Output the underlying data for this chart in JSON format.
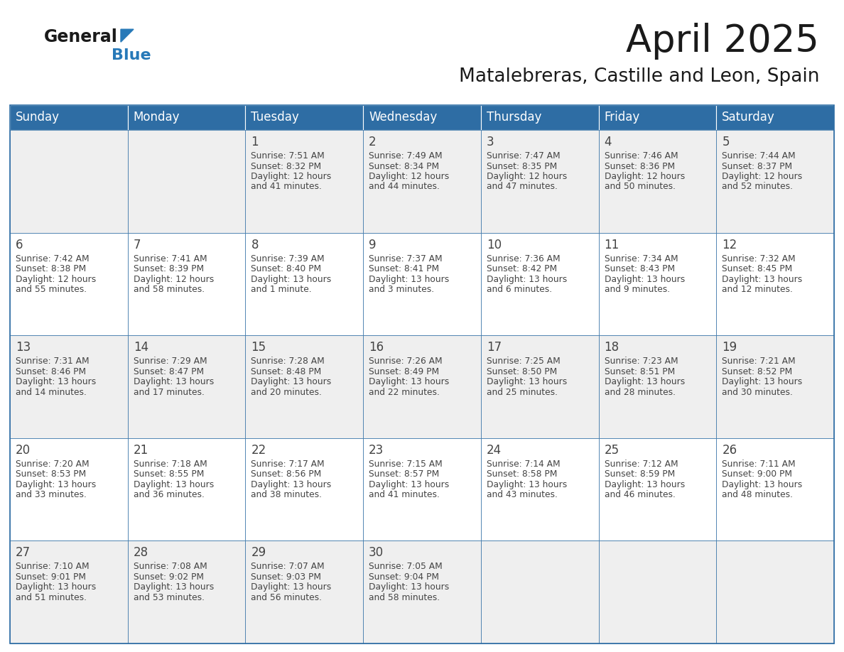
{
  "title": "April 2025",
  "subtitle": "Matalebreras, Castille and Leon, Spain",
  "days_of_week": [
    "Sunday",
    "Monday",
    "Tuesday",
    "Wednesday",
    "Thursday",
    "Friday",
    "Saturday"
  ],
  "header_bg": "#2E6DA4",
  "header_text": "#FFFFFF",
  "cell_bg_odd": "#EFEFEF",
  "cell_bg_even": "#FFFFFF",
  "text_color": "#444444",
  "border_color": "#2E6DA4",
  "weeks": [
    [
      {
        "day": "",
        "sunrise": "",
        "sunset": "",
        "daylight": ""
      },
      {
        "day": "",
        "sunrise": "",
        "sunset": "",
        "daylight": ""
      },
      {
        "day": "1",
        "sunrise": "7:51 AM",
        "sunset": "8:32 PM",
        "daylight": "12 hours and 41 minutes."
      },
      {
        "day": "2",
        "sunrise": "7:49 AM",
        "sunset": "8:34 PM",
        "daylight": "12 hours and 44 minutes."
      },
      {
        "day": "3",
        "sunrise": "7:47 AM",
        "sunset": "8:35 PM",
        "daylight": "12 hours and 47 minutes."
      },
      {
        "day": "4",
        "sunrise": "7:46 AM",
        "sunset": "8:36 PM",
        "daylight": "12 hours and 50 minutes."
      },
      {
        "day": "5",
        "sunrise": "7:44 AM",
        "sunset": "8:37 PM",
        "daylight": "12 hours and 52 minutes."
      }
    ],
    [
      {
        "day": "6",
        "sunrise": "7:42 AM",
        "sunset": "8:38 PM",
        "daylight": "12 hours and 55 minutes."
      },
      {
        "day": "7",
        "sunrise": "7:41 AM",
        "sunset": "8:39 PM",
        "daylight": "12 hours and 58 minutes."
      },
      {
        "day": "8",
        "sunrise": "7:39 AM",
        "sunset": "8:40 PM",
        "daylight": "13 hours and 1 minute."
      },
      {
        "day": "9",
        "sunrise": "7:37 AM",
        "sunset": "8:41 PM",
        "daylight": "13 hours and 3 minutes."
      },
      {
        "day": "10",
        "sunrise": "7:36 AM",
        "sunset": "8:42 PM",
        "daylight": "13 hours and 6 minutes."
      },
      {
        "day": "11",
        "sunrise": "7:34 AM",
        "sunset": "8:43 PM",
        "daylight": "13 hours and 9 minutes."
      },
      {
        "day": "12",
        "sunrise": "7:32 AM",
        "sunset": "8:45 PM",
        "daylight": "13 hours and 12 minutes."
      }
    ],
    [
      {
        "day": "13",
        "sunrise": "7:31 AM",
        "sunset": "8:46 PM",
        "daylight": "13 hours and 14 minutes."
      },
      {
        "day": "14",
        "sunrise": "7:29 AM",
        "sunset": "8:47 PM",
        "daylight": "13 hours and 17 minutes."
      },
      {
        "day": "15",
        "sunrise": "7:28 AM",
        "sunset": "8:48 PM",
        "daylight": "13 hours and 20 minutes."
      },
      {
        "day": "16",
        "sunrise": "7:26 AM",
        "sunset": "8:49 PM",
        "daylight": "13 hours and 22 minutes."
      },
      {
        "day": "17",
        "sunrise": "7:25 AM",
        "sunset": "8:50 PM",
        "daylight": "13 hours and 25 minutes."
      },
      {
        "day": "18",
        "sunrise": "7:23 AM",
        "sunset": "8:51 PM",
        "daylight": "13 hours and 28 minutes."
      },
      {
        "day": "19",
        "sunrise": "7:21 AM",
        "sunset": "8:52 PM",
        "daylight": "13 hours and 30 minutes."
      }
    ],
    [
      {
        "day": "20",
        "sunrise": "7:20 AM",
        "sunset": "8:53 PM",
        "daylight": "13 hours and 33 minutes."
      },
      {
        "day": "21",
        "sunrise": "7:18 AM",
        "sunset": "8:55 PM",
        "daylight": "13 hours and 36 minutes."
      },
      {
        "day": "22",
        "sunrise": "7:17 AM",
        "sunset": "8:56 PM",
        "daylight": "13 hours and 38 minutes."
      },
      {
        "day": "23",
        "sunrise": "7:15 AM",
        "sunset": "8:57 PM",
        "daylight": "13 hours and 41 minutes."
      },
      {
        "day": "24",
        "sunrise": "7:14 AM",
        "sunset": "8:58 PM",
        "daylight": "13 hours and 43 minutes."
      },
      {
        "day": "25",
        "sunrise": "7:12 AM",
        "sunset": "8:59 PM",
        "daylight": "13 hours and 46 minutes."
      },
      {
        "day": "26",
        "sunrise": "7:11 AM",
        "sunset": "9:00 PM",
        "daylight": "13 hours and 48 minutes."
      }
    ],
    [
      {
        "day": "27",
        "sunrise": "7:10 AM",
        "sunset": "9:01 PM",
        "daylight": "13 hours and 51 minutes."
      },
      {
        "day": "28",
        "sunrise": "7:08 AM",
        "sunset": "9:02 PM",
        "daylight": "13 hours and 53 minutes."
      },
      {
        "day": "29",
        "sunrise": "7:07 AM",
        "sunset": "9:03 PM",
        "daylight": "13 hours and 56 minutes."
      },
      {
        "day": "30",
        "sunrise": "7:05 AM",
        "sunset": "9:04 PM",
        "daylight": "13 hours and 58 minutes."
      },
      {
        "day": "",
        "sunrise": "",
        "sunset": "",
        "daylight": ""
      },
      {
        "day": "",
        "sunrise": "",
        "sunset": "",
        "daylight": ""
      },
      {
        "day": "",
        "sunrise": "",
        "sunset": "",
        "daylight": ""
      }
    ]
  ],
  "logo_general_color": "#1a1a1a",
  "logo_blue_color": "#2779B8",
  "title_fontsize": 38,
  "subtitle_fontsize": 19,
  "day_number_fontsize": 12,
  "cell_text_fontsize": 8.8,
  "header_fontsize": 12
}
